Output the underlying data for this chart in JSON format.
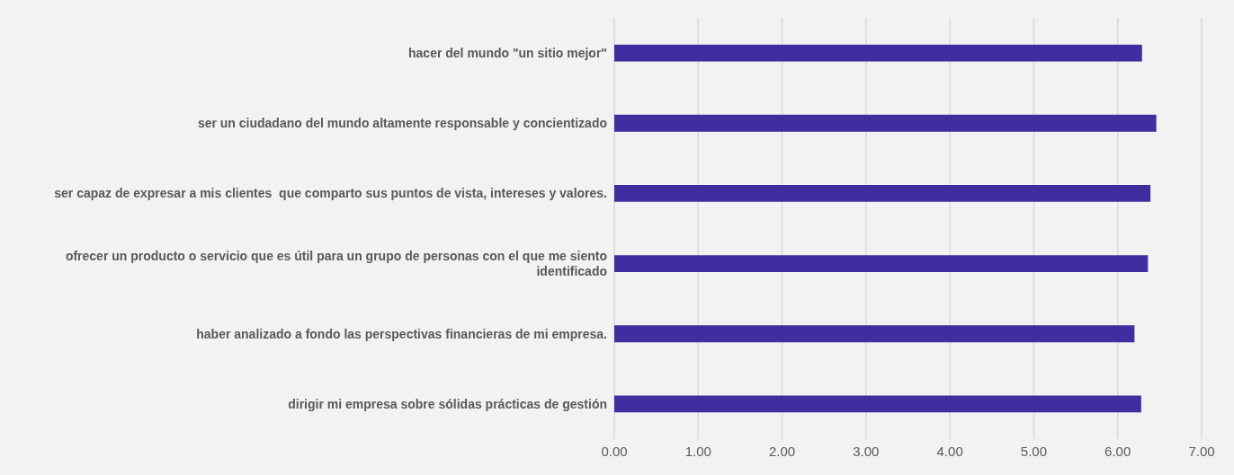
{
  "chart_data": {
    "type": "bar",
    "orientation": "horizontal",
    "categories": [
      "hacer del mundo \"un sitio mejor\"",
      "ser un ciudadano del mundo altamente responsable y concientizado",
      "ser capaz de expresar a mis clientes  que comparto sus puntos de vista, intereses y valores.",
      "ofrecer un producto o servicio que es útil para un grupo de personas con el que me siento identificado",
      "haber analizado a fondo las perspectivas financieras de mi empresa.",
      "dirigir mi empresa sobre sólidas prácticas de gestión"
    ],
    "values": [
      6.29,
      6.46,
      6.39,
      6.36,
      6.2,
      6.28
    ],
    "color": "#3f2ea0",
    "xlim": [
      0,
      7
    ],
    "xticks": [
      {
        "value": 0,
        "label": "0.00"
      },
      {
        "value": 1,
        "label": "1.00"
      },
      {
        "value": 2,
        "label": "2.00"
      },
      {
        "value": 3,
        "label": "3.00"
      },
      {
        "value": 4,
        "label": "4.00"
      },
      {
        "value": 5,
        "label": "5.00"
      },
      {
        "value": 6,
        "label": "6.00"
      },
      {
        "value": 7,
        "label": "7.00"
      }
    ],
    "grid": "x"
  }
}
